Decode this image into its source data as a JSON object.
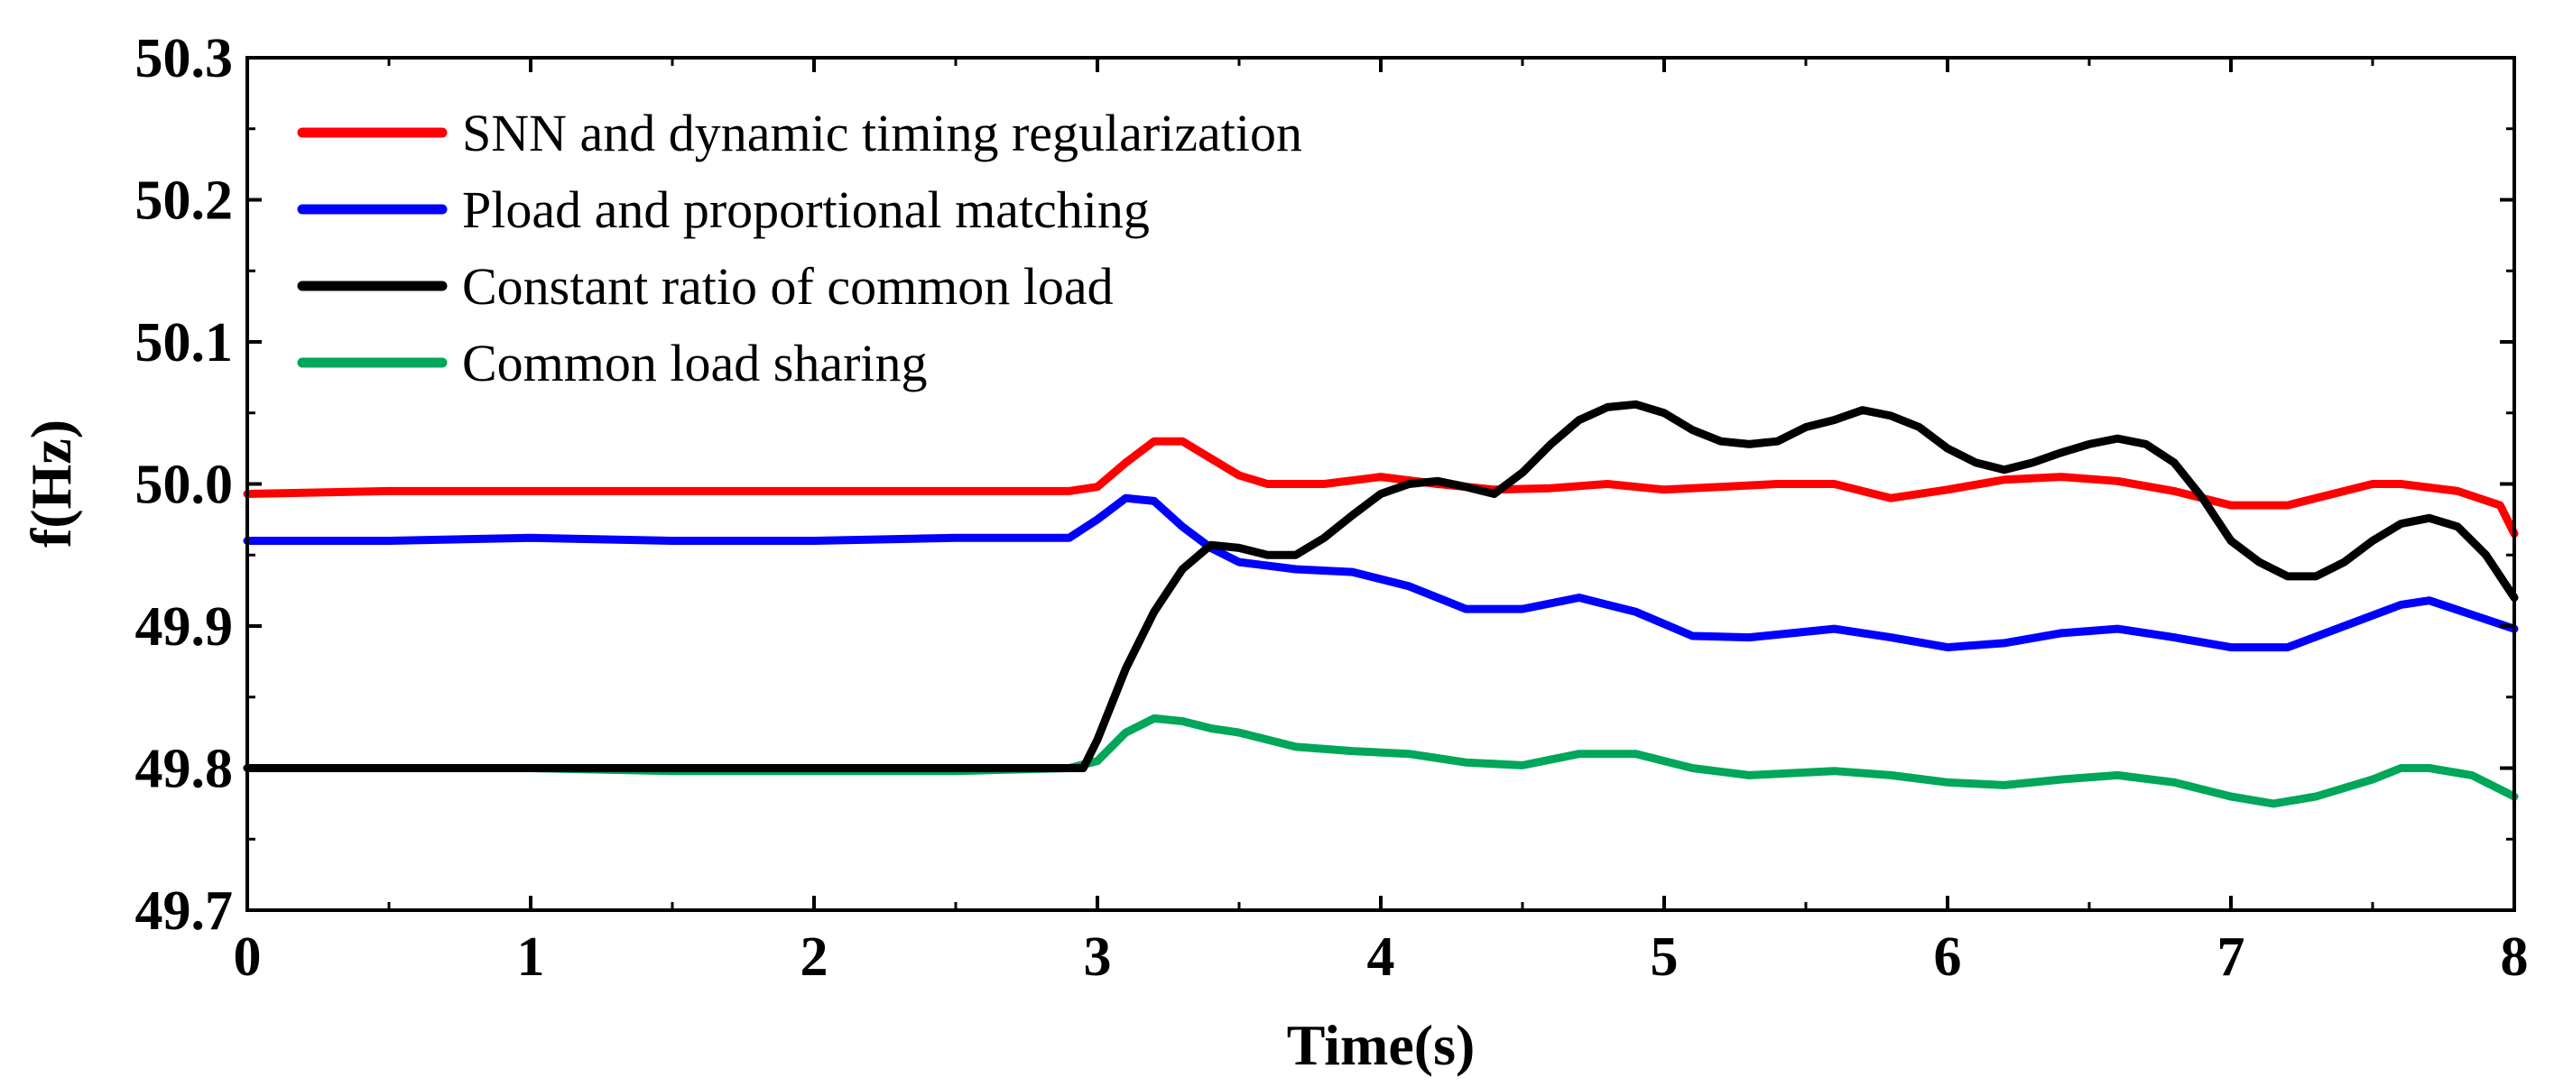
{
  "chart_data": {
    "type": "line",
    "title": "",
    "xlabel": "Time(s)",
    "ylabel": "f(Hz)",
    "xlim": [
      0,
      8
    ],
    "ylim": [
      49.7,
      50.3
    ],
    "xticks": [
      0,
      1,
      2,
      3,
      4,
      5,
      6,
      7,
      8
    ],
    "xtick_labels": [
      "0",
      "1",
      "2",
      "3",
      "4",
      "5",
      "6",
      "7",
      "8"
    ],
    "yticks": [
      49.7,
      49.8,
      49.9,
      50.0,
      50.1,
      50.2,
      50.3
    ],
    "ytick_labels": [
      "49.7",
      "49.8",
      "49.9",
      "50.0",
      "50.1",
      "50.2",
      "50.3"
    ],
    "grid": false,
    "legend_position": "top-left",
    "series": [
      {
        "name": "SNN and dynamic timing regularization",
        "color": "#ff0000",
        "x": [
          0,
          0.5,
          1,
          1.5,
          2,
          2.5,
          2.9,
          3.0,
          3.1,
          3.2,
          3.3,
          3.4,
          3.5,
          3.6,
          3.8,
          4.0,
          4.2,
          4.4,
          4.6,
          4.8,
          5.0,
          5.2,
          5.4,
          5.6,
          5.8,
          6.0,
          6.2,
          6.4,
          6.6,
          6.8,
          7.0,
          7.2,
          7.4,
          7.5,
          7.6,
          7.8,
          7.95,
          8.0
        ],
        "y": [
          49.993,
          49.995,
          49.995,
          49.995,
          49.995,
          49.995,
          49.995,
          49.998,
          50.015,
          50.03,
          50.03,
          50.018,
          50.006,
          50.0,
          50.0,
          50.005,
          50.0,
          49.996,
          49.997,
          50.0,
          49.996,
          49.998,
          50.0,
          50.0,
          49.99,
          49.996,
          50.003,
          50.005,
          50.002,
          49.995,
          49.985,
          49.985,
          49.995,
          50.0,
          50.0,
          49.995,
          49.985,
          49.965
        ]
      },
      {
        "name": "Pload and proportional matching",
        "color": "#0000ff",
        "x": [
          0,
          0.5,
          1,
          1.5,
          2,
          2.5,
          2.9,
          3.0,
          3.1,
          3.2,
          3.3,
          3.4,
          3.5,
          3.7,
          3.9,
          4.1,
          4.3,
          4.5,
          4.7,
          4.9,
          5.1,
          5.3,
          5.6,
          5.8,
          6.0,
          6.2,
          6.4,
          6.6,
          6.8,
          7.0,
          7.2,
          7.4,
          7.6,
          7.7,
          7.85,
          8.0
        ],
        "y": [
          49.96,
          49.96,
          49.962,
          49.96,
          49.96,
          49.962,
          49.962,
          49.975,
          49.99,
          49.988,
          49.97,
          49.955,
          49.945,
          49.94,
          49.938,
          49.928,
          49.912,
          49.912,
          49.92,
          49.91,
          49.893,
          49.892,
          49.898,
          49.892,
          49.885,
          49.888,
          49.895,
          49.898,
          49.892,
          49.885,
          49.885,
          49.9,
          49.915,
          49.918,
          49.908,
          49.898
        ]
      },
      {
        "name": "Constant ratio of common load",
        "color": "#000000",
        "x": [
          0,
          2.95,
          3.0,
          3.1,
          3.2,
          3.3,
          3.4,
          3.5,
          3.6,
          3.7,
          3.8,
          3.9,
          4.0,
          4.1,
          4.2,
          4.3,
          4.4,
          4.5,
          4.6,
          4.7,
          4.8,
          4.9,
          5.0,
          5.1,
          5.2,
          5.3,
          5.4,
          5.5,
          5.6,
          5.7,
          5.8,
          5.9,
          6.0,
          6.1,
          6.2,
          6.3,
          6.4,
          6.5,
          6.6,
          6.7,
          6.8,
          6.9,
          7.0,
          7.1,
          7.2,
          7.3,
          7.4,
          7.5,
          7.6,
          7.7,
          7.8,
          7.9,
          8.0
        ],
        "y": [
          49.8,
          49.8,
          49.82,
          49.87,
          49.91,
          49.94,
          49.957,
          49.955,
          49.95,
          49.95,
          49.962,
          49.978,
          49.993,
          50.0,
          50.002,
          49.998,
          49.993,
          50.008,
          50.028,
          50.045,
          50.054,
          50.056,
          50.05,
          50.038,
          50.03,
          50.028,
          50.03,
          50.04,
          50.045,
          50.052,
          50.048,
          50.04,
          50.025,
          50.015,
          50.01,
          50.015,
          50.022,
          50.028,
          50.032,
          50.028,
          50.015,
          49.99,
          49.96,
          49.945,
          49.935,
          49.935,
          49.945,
          49.96,
          49.972,
          49.976,
          49.97,
          49.95,
          49.92
        ]
      },
      {
        "name": "Common load sharing",
        "color": "#00a65a",
        "x": [
          0,
          0.5,
          1,
          1.5,
          2,
          2.5,
          2.9,
          3.0,
          3.1,
          3.2,
          3.3,
          3.4,
          3.5,
          3.7,
          3.9,
          4.1,
          4.3,
          4.5,
          4.7,
          4.9,
          5.1,
          5.3,
          5.6,
          5.8,
          6.0,
          6.2,
          6.4,
          6.6,
          6.8,
          7.0,
          7.15,
          7.3,
          7.5,
          7.6,
          7.7,
          7.85,
          8.0
        ],
        "y": [
          49.8,
          49.8,
          49.8,
          49.798,
          49.798,
          49.798,
          49.8,
          49.805,
          49.825,
          49.835,
          49.833,
          49.828,
          49.825,
          49.815,
          49.812,
          49.81,
          49.804,
          49.802,
          49.81,
          49.81,
          49.8,
          49.795,
          49.798,
          49.795,
          49.79,
          49.788,
          49.792,
          49.795,
          49.79,
          49.78,
          49.775,
          49.78,
          49.792,
          49.8,
          49.8,
          49.795,
          49.78
        ]
      }
    ]
  }
}
